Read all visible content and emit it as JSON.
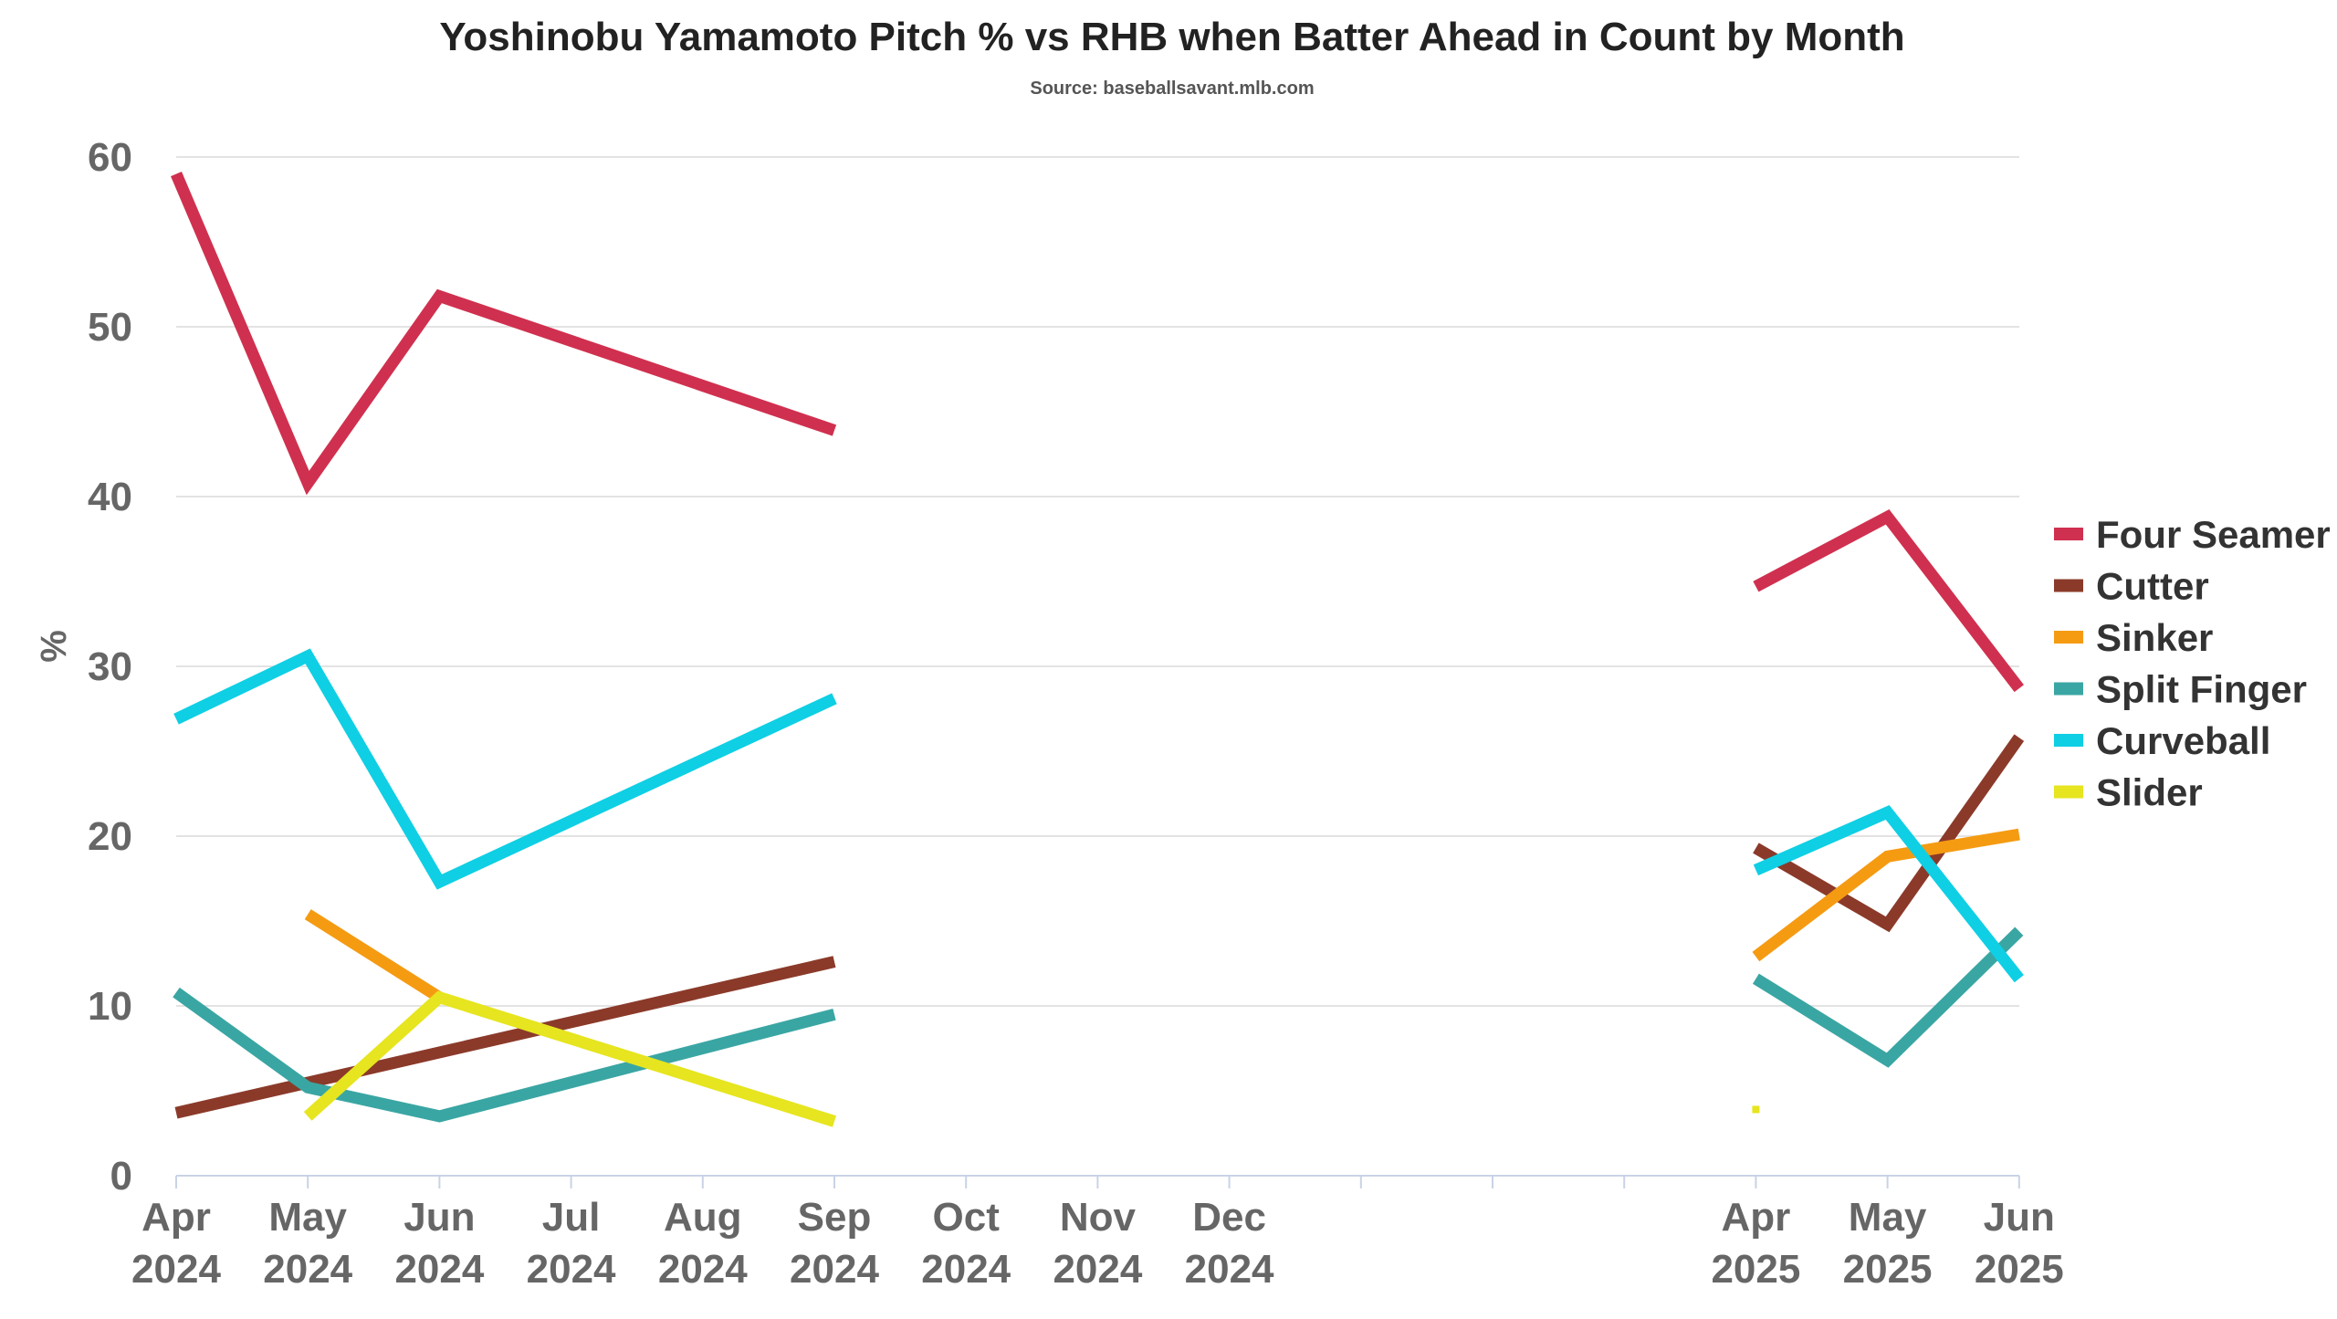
{
  "chart_data": {
    "type": "line",
    "title": "Yoshinobu Yamamoto Pitch % vs RHB when Batter Ahead in Count by Month",
    "subtitle": "Source: baseballsavant.mlb.com",
    "xlabel": "",
    "ylabel": "%",
    "ylim": [
      0,
      60
    ],
    "y_ticks": [
      "0",
      "10",
      "20",
      "30",
      "40",
      "50",
      "60"
    ],
    "grid": true,
    "legend_position": "right",
    "categories": [
      [
        "Apr",
        "2024"
      ],
      [
        "May",
        "2024"
      ],
      [
        "Jun",
        "2024"
      ],
      [
        "Jul",
        "2024"
      ],
      [
        "Aug",
        "2024"
      ],
      [
        "Sep",
        "2024"
      ],
      [
        "Oct",
        "2024"
      ],
      [
        "Nov",
        "2024"
      ],
      [
        "Dec",
        "2024"
      ],
      [
        "",
        ""
      ],
      [
        "",
        ""
      ],
      [
        "",
        ""
      ],
      [
        "Apr",
        "2025"
      ],
      [
        "May",
        "2025"
      ],
      [
        "Jun",
        "2025"
      ]
    ],
    "series": [
      {
        "name": "Four Seamer",
        "color": "#d0304f",
        "values": [
          59,
          40.8,
          51.8,
          null,
          null,
          43.9,
          null,
          null,
          null,
          null,
          null,
          null,
          34.7,
          38.8,
          28.7
        ]
      },
      {
        "name": "Cutter",
        "color": "#8b3a2a",
        "values": [
          3.7,
          null,
          null,
          null,
          null,
          12.6,
          null,
          null,
          null,
          null,
          null,
          null,
          19.3,
          14.8,
          25.8
        ]
      },
      {
        "name": "Sinker",
        "color": "#f59b12",
        "values": [
          null,
          15.4,
          10.5,
          null,
          null,
          null,
          null,
          null,
          null,
          null,
          null,
          null,
          12.9,
          18.8,
          20.1
        ]
      },
      {
        "name": "Split Finger",
        "color": "#3aa6a3",
        "values": [
          10.8,
          5.2,
          3.5,
          null,
          null,
          9.5,
          null,
          null,
          null,
          null,
          null,
          null,
          11.6,
          6.8,
          14.4
        ]
      },
      {
        "name": "Curveball",
        "color": "#0fcfe4",
        "values": [
          26.9,
          30.6,
          17.3,
          null,
          null,
          28.1,
          null,
          null,
          null,
          null,
          null,
          null,
          18,
          21.4,
          11.6
        ]
      },
      {
        "name": "Slider",
        "color": "#e6e51f",
        "values": [
          null,
          3.5,
          10.5,
          null,
          null,
          3.2,
          null,
          null,
          null,
          null,
          null,
          null,
          3.9,
          null,
          null
        ]
      }
    ]
  }
}
